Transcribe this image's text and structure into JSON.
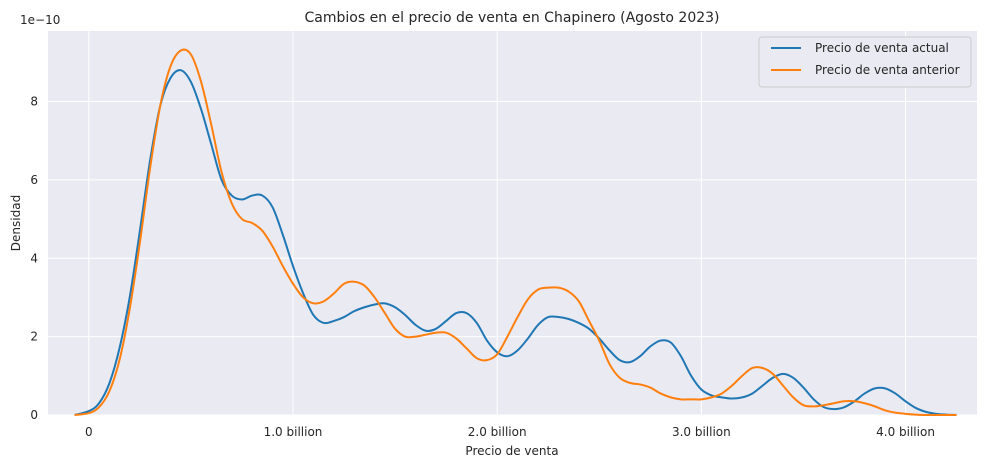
{
  "chart_data": {
    "type": "line",
    "title": "Cambios en el precio de venta en Chapinero (Agosto 2023)",
    "xlabel": "Precio de venta",
    "ylabel": "Densidad",
    "y_multiplier_label": "1e−10",
    "xlim": [
      -0.2,
      4.35
    ],
    "ylim": [
      0,
      9.8
    ],
    "x_ticks": [
      0,
      1,
      2,
      3,
      4
    ],
    "x_tick_labels": [
      "0",
      "1.0 billion",
      "2.0 billion",
      "3.0 billion",
      "4.0 billion"
    ],
    "y_ticks": [
      0,
      2,
      4,
      6,
      8
    ],
    "y_tick_labels": [
      "0",
      "2",
      "4",
      "6",
      "8"
    ],
    "grid": true,
    "legend_position": "top-right",
    "series": [
      {
        "name": "Precio de venta actual",
        "color": "#1f77b4",
        "points": [
          [
            -0.07,
            0.0
          ],
          [
            0.0,
            0.1
          ],
          [
            0.05,
            0.3
          ],
          [
            0.1,
            0.8
          ],
          [
            0.15,
            1.7
          ],
          [
            0.2,
            3.0
          ],
          [
            0.25,
            4.7
          ],
          [
            0.3,
            6.5
          ],
          [
            0.35,
            7.9
          ],
          [
            0.4,
            8.6
          ],
          [
            0.45,
            8.8
          ],
          [
            0.5,
            8.5
          ],
          [
            0.55,
            7.8
          ],
          [
            0.6,
            6.9
          ],
          [
            0.65,
            6.0
          ],
          [
            0.7,
            5.6
          ],
          [
            0.75,
            5.5
          ],
          [
            0.8,
            5.6
          ],
          [
            0.85,
            5.6
          ],
          [
            0.9,
            5.3
          ],
          [
            0.95,
            4.6
          ],
          [
            1.0,
            3.8
          ],
          [
            1.05,
            3.1
          ],
          [
            1.1,
            2.55
          ],
          [
            1.15,
            2.35
          ],
          [
            1.2,
            2.4
          ],
          [
            1.25,
            2.5
          ],
          [
            1.3,
            2.65
          ],
          [
            1.35,
            2.75
          ],
          [
            1.4,
            2.82
          ],
          [
            1.45,
            2.85
          ],
          [
            1.5,
            2.75
          ],
          [
            1.55,
            2.55
          ],
          [
            1.6,
            2.3
          ],
          [
            1.65,
            2.15
          ],
          [
            1.7,
            2.2
          ],
          [
            1.75,
            2.4
          ],
          [
            1.8,
            2.6
          ],
          [
            1.85,
            2.6
          ],
          [
            1.9,
            2.35
          ],
          [
            1.95,
            1.9
          ],
          [
            2.0,
            1.6
          ],
          [
            2.05,
            1.5
          ],
          [
            2.1,
            1.65
          ],
          [
            2.15,
            1.95
          ],
          [
            2.2,
            2.3
          ],
          [
            2.25,
            2.5
          ],
          [
            2.3,
            2.5
          ],
          [
            2.35,
            2.45
          ],
          [
            2.4,
            2.35
          ],
          [
            2.45,
            2.2
          ],
          [
            2.5,
            1.95
          ],
          [
            2.55,
            1.65
          ],
          [
            2.6,
            1.4
          ],
          [
            2.65,
            1.35
          ],
          [
            2.7,
            1.5
          ],
          [
            2.75,
            1.75
          ],
          [
            2.8,
            1.9
          ],
          [
            2.85,
            1.85
          ],
          [
            2.9,
            1.5
          ],
          [
            2.95,
            1.0
          ],
          [
            3.0,
            0.65
          ],
          [
            3.05,
            0.5
          ],
          [
            3.1,
            0.45
          ],
          [
            3.15,
            0.42
          ],
          [
            3.2,
            0.45
          ],
          [
            3.25,
            0.55
          ],
          [
            3.3,
            0.75
          ],
          [
            3.35,
            0.95
          ],
          [
            3.4,
            1.05
          ],
          [
            3.45,
            0.95
          ],
          [
            3.5,
            0.7
          ],
          [
            3.55,
            0.4
          ],
          [
            3.6,
            0.2
          ],
          [
            3.65,
            0.15
          ],
          [
            3.7,
            0.2
          ],
          [
            3.75,
            0.35
          ],
          [
            3.8,
            0.55
          ],
          [
            3.85,
            0.68
          ],
          [
            3.9,
            0.68
          ],
          [
            3.95,
            0.55
          ],
          [
            4.0,
            0.35
          ],
          [
            4.05,
            0.18
          ],
          [
            4.1,
            0.08
          ],
          [
            4.15,
            0.03
          ],
          [
            4.2,
            0.01
          ],
          [
            4.25,
            0.0
          ]
        ]
      },
      {
        "name": "Precio de venta anterior",
        "color": "#ff7f0e",
        "points": [
          [
            -0.07,
            0.0
          ],
          [
            0.0,
            0.05
          ],
          [
            0.05,
            0.2
          ],
          [
            0.1,
            0.6
          ],
          [
            0.15,
            1.4
          ],
          [
            0.2,
            2.7
          ],
          [
            0.25,
            4.4
          ],
          [
            0.3,
            6.3
          ],
          [
            0.35,
            7.9
          ],
          [
            0.4,
            8.9
          ],
          [
            0.45,
            9.3
          ],
          [
            0.5,
            9.2
          ],
          [
            0.55,
            8.5
          ],
          [
            0.6,
            7.4
          ],
          [
            0.65,
            6.2
          ],
          [
            0.7,
            5.4
          ],
          [
            0.75,
            5.0
          ],
          [
            0.8,
            4.9
          ],
          [
            0.85,
            4.7
          ],
          [
            0.9,
            4.3
          ],
          [
            0.95,
            3.8
          ],
          [
            1.0,
            3.35
          ],
          [
            1.05,
            3.0
          ],
          [
            1.1,
            2.85
          ],
          [
            1.15,
            2.9
          ],
          [
            1.2,
            3.1
          ],
          [
            1.25,
            3.35
          ],
          [
            1.3,
            3.4
          ],
          [
            1.35,
            3.3
          ],
          [
            1.4,
            3.0
          ],
          [
            1.45,
            2.6
          ],
          [
            1.5,
            2.2
          ],
          [
            1.55,
            2.0
          ],
          [
            1.6,
            2.0
          ],
          [
            1.65,
            2.05
          ],
          [
            1.7,
            2.1
          ],
          [
            1.75,
            2.1
          ],
          [
            1.8,
            1.95
          ],
          [
            1.85,
            1.7
          ],
          [
            1.9,
            1.45
          ],
          [
            1.95,
            1.4
          ],
          [
            2.0,
            1.55
          ],
          [
            2.05,
            2.0
          ],
          [
            2.1,
            2.5
          ],
          [
            2.15,
            2.95
          ],
          [
            2.2,
            3.2
          ],
          [
            2.25,
            3.25
          ],
          [
            2.3,
            3.25
          ],
          [
            2.35,
            3.15
          ],
          [
            2.4,
            2.9
          ],
          [
            2.45,
            2.4
          ],
          [
            2.5,
            1.9
          ],
          [
            2.55,
            1.3
          ],
          [
            2.6,
            0.95
          ],
          [
            2.65,
            0.82
          ],
          [
            2.7,
            0.78
          ],
          [
            2.75,
            0.7
          ],
          [
            2.8,
            0.55
          ],
          [
            2.85,
            0.45
          ],
          [
            2.9,
            0.4
          ],
          [
            2.95,
            0.4
          ],
          [
            3.0,
            0.4
          ],
          [
            3.05,
            0.45
          ],
          [
            3.1,
            0.55
          ],
          [
            3.15,
            0.75
          ],
          [
            3.2,
            1.0
          ],
          [
            3.25,
            1.2
          ],
          [
            3.3,
            1.2
          ],
          [
            3.35,
            1.05
          ],
          [
            3.4,
            0.75
          ],
          [
            3.45,
            0.45
          ],
          [
            3.5,
            0.25
          ],
          [
            3.55,
            0.22
          ],
          [
            3.6,
            0.25
          ],
          [
            3.65,
            0.3
          ],
          [
            3.7,
            0.35
          ],
          [
            3.75,
            0.35
          ],
          [
            3.8,
            0.3
          ],
          [
            3.85,
            0.22
          ],
          [
            3.9,
            0.12
          ],
          [
            3.95,
            0.06
          ],
          [
            4.0,
            0.03
          ],
          [
            4.05,
            0.01
          ],
          [
            4.1,
            0.0
          ],
          [
            4.25,
            0.0
          ]
        ]
      }
    ]
  }
}
